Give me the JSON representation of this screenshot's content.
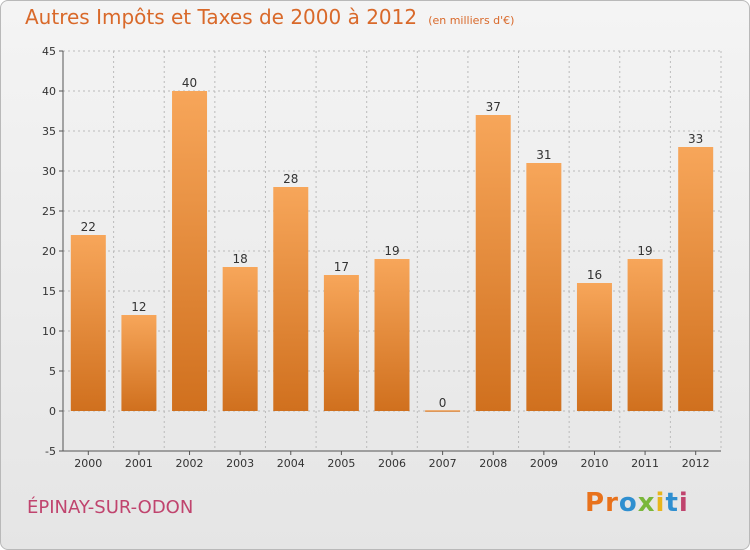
{
  "header": {
    "title": "Autres Impôts et Taxes de 2000 à 2012",
    "unit_note": "(en milliers d'€)"
  },
  "footer": {
    "commune": "ÉPINAY-SUR-ODON",
    "brand": "Proxiti"
  },
  "colors": {
    "title": "#d9692a",
    "commune": "#c0446e",
    "bar_top": "#f7a65a",
    "bar_bottom": "#d0701e",
    "grid": "#bbbbbb",
    "brand_letters": [
      "#e8721c",
      "#e8721c",
      "#2f8fd0",
      "#7ab73a",
      "#e8b51c",
      "#2f8fd0",
      "#c0446e"
    ]
  },
  "chart_data": {
    "type": "bar",
    "title": "Autres Impôts et Taxes de 2000 à 2012",
    "subtitle": "(en milliers d'€)",
    "categories": [
      "2000",
      "2001",
      "2002",
      "2003",
      "2004",
      "2005",
      "2006",
      "2007",
      "2008",
      "2009",
      "2010",
      "2011",
      "2012"
    ],
    "values": [
      22,
      12,
      40,
      18,
      28,
      17,
      19,
      0,
      37,
      31,
      16,
      19,
      33
    ],
    "xlabel": "",
    "ylabel": "",
    "ylim": [
      -5,
      45
    ],
    "yticks": [
      -5,
      0,
      5,
      10,
      15,
      20,
      25,
      30,
      35,
      40,
      45
    ],
    "grid": "horizontal dashed",
    "legend": "none"
  }
}
